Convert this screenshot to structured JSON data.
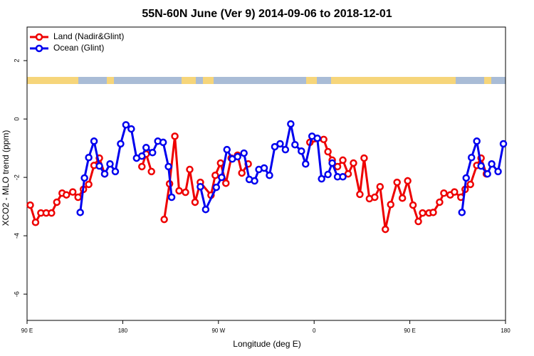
{
  "chart_data": {
    "type": "line",
    "title": "55N-60N June (Ver 9)   2014-09-06 to 2018-12-01",
    "x_label": "Longitude (deg E)",
    "y_label": "XCO2 - MLO trend (ppm)",
    "xlim": [
      90,
      540
    ],
    "ylim": [
      -6.9,
      3.15
    ],
    "xticks": [
      {
        "value": 90,
        "label": "90 E"
      },
      {
        "value": 180,
        "label": "180"
      },
      {
        "value": 270,
        "label": "90 W"
      },
      {
        "value": 360,
        "label": "0"
      },
      {
        "value": 450,
        "label": "90 E"
      },
      {
        "value": 540,
        "label": "180"
      }
    ],
    "yticks": [
      -6,
      -4,
      -2,
      0,
      2
    ],
    "legend": "top-left",
    "series": [
      {
        "name": "Land (Nadir&Glint)",
        "color": "#ee0000",
        "x": [
          93,
          98,
          103,
          108,
          113,
          118,
          123,
          127,
          133,
          138,
          143,
          148,
          153,
          158,
          163,
          180,
          198,
          202,
          207,
          213,
          219,
          224,
          229,
          233,
          239,
          243,
          248,
          253,
          263,
          267,
          272,
          277,
          282,
          288,
          292,
          298,
          330,
          356,
          369,
          373,
          377,
          382,
          387,
          392,
          397,
          403,
          407,
          412,
          417,
          422,
          427,
          432,
          438,
          443,
          448,
          453,
          458,
          462,
          468,
          472,
          478,
          482,
          488,
          492,
          498,
          502,
          507,
          513,
          517,
          522
        ],
        "values": [
          -2.95,
          -3.54,
          -3.22,
          -3.22,
          -3.22,
          -2.85,
          -2.54,
          -2.6,
          -2.5,
          -2.68,
          -2.41,
          -2.24,
          -1.59,
          -1.34,
          -1.88,
          null,
          -1.63,
          -1.2,
          -1.8,
          null,
          -3.44,
          -2.22,
          -0.59,
          -2.46,
          -2.51,
          -1.73,
          -2.85,
          -2.17,
          -2.61,
          -1.93,
          -1.51,
          -2.2,
          -1.34,
          -1.24,
          -1.85,
          -1.54,
          null,
          -0.8,
          -0.7,
          -1.12,
          -1.41,
          -1.63,
          -1.41,
          -1.88,
          -1.51,
          -2.58,
          -1.34,
          -2.73,
          -2.68,
          -2.32,
          -3.78,
          -2.93,
          -2.17,
          -2.71,
          -2.12,
          -2.95,
          -3.51,
          -3.22,
          -3.22,
          -3.2,
          -2.85,
          -2.54,
          -2.6,
          -2.5,
          -2.68,
          -2.41,
          -2.24,
          -1.59,
          -1.34,
          -1.88
        ]
      },
      {
        "name": "Ocean (Glint)",
        "color": "#0000ee",
        "x": [
          140,
          144,
          148,
          153,
          158,
          163,
          168,
          173,
          178,
          183,
          188,
          193,
          198,
          202,
          208,
          213,
          218,
          223,
          226,
          239,
          253,
          258,
          268,
          273,
          278,
          283,
          288,
          294,
          299,
          304,
          308,
          313,
          318,
          323,
          328,
          333,
          338,
          342,
          348,
          352,
          358,
          363,
          367,
          373,
          377,
          382,
          387,
          440,
          499,
          503,
          508,
          513,
          517,
          523,
          527,
          533,
          538
        ],
        "values": [
          -3.2,
          -2.02,
          -1.32,
          -0.76,
          -1.61,
          -1.88,
          -1.54,
          -1.8,
          -0.85,
          -0.2,
          -0.34,
          -1.34,
          -1.27,
          -0.98,
          -1.15,
          -0.76,
          -0.8,
          -1.63,
          -2.68,
          null,
          -2.32,
          -3.1,
          -2.34,
          -2.0,
          -1.05,
          -1.37,
          -1.29,
          -1.17,
          -2.07,
          -2.12,
          -1.73,
          -1.68,
          -1.93,
          -0.95,
          -0.85,
          -1.05,
          -0.17,
          -0.88,
          -1.1,
          -1.54,
          -0.59,
          -0.66,
          -2.05,
          -1.9,
          -1.51,
          -1.98,
          -1.98,
          null,
          -3.2,
          -2.02,
          -1.32,
          -0.76,
          -1.61,
          -1.88,
          -1.54,
          -1.8,
          -0.85
        ]
      }
    ]
  }
}
